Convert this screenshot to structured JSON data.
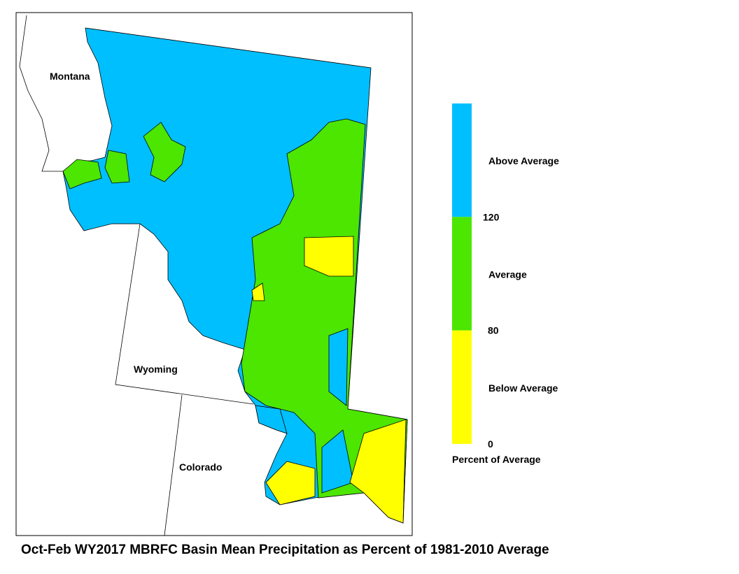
{
  "map": {
    "title": "Oct-Feb WY2017 MBRFC Basin Mean Precipitation as Percent of 1981-2010 Average",
    "states": [
      "Montana",
      "Wyoming",
      "Colorado"
    ],
    "legend": {
      "title": "Percent of Average",
      "bands": [
        {
          "label": "Above Average",
          "color": "#00bfff"
        },
        {
          "label": "Average",
          "color": "#4ce600"
        },
        {
          "label": "Below Average",
          "color": "#ffff00"
        }
      ],
      "breaks": [
        120,
        80,
        0
      ]
    }
  }
}
